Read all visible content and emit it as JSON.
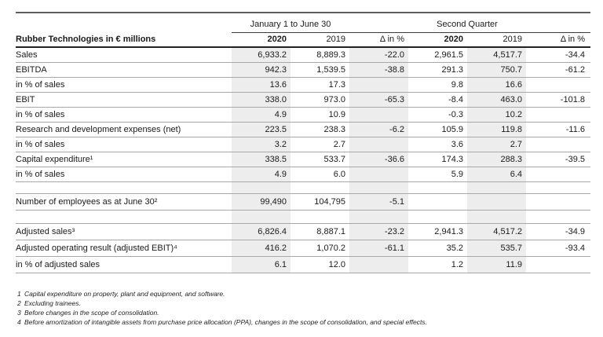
{
  "table": {
    "title": "Rubber Technologies in € millions",
    "group_headers": [
      "January 1 to June 30",
      "Second Quarter"
    ],
    "column_headers": [
      "2020",
      "2019",
      "Δ in %",
      "2020",
      "2019",
      "Δ in %"
    ],
    "rows": [
      {
        "label": "Sales",
        "values": [
          "6,933.2",
          "8,889.3",
          "-22.0",
          "2,961.5",
          "4,517.7",
          "-34.4"
        ]
      },
      {
        "label": "EBITDA",
        "values": [
          "942.3",
          "1,539.5",
          "-38.8",
          "291.3",
          "750.7",
          "-61.2"
        ]
      },
      {
        "label": "in % of sales",
        "values": [
          "13.6",
          "17.3",
          "",
          "9.8",
          "16.6",
          ""
        ]
      },
      {
        "label": "EBIT",
        "values": [
          "338.0",
          "973.0",
          "-65.3",
          "-8.4",
          "463.0",
          "-101.8"
        ]
      },
      {
        "label": "in % of sales",
        "values": [
          "4.9",
          "10.9",
          "",
          "-0.3",
          "10.2",
          ""
        ]
      },
      {
        "label": "Research and development expenses (net)",
        "values": [
          "223.5",
          "238.3",
          "-6.2",
          "105.9",
          "119.8",
          "-11.6"
        ]
      },
      {
        "label": "in % of sales",
        "values": [
          "3.2",
          "2.7",
          "",
          "3.6",
          "2.7",
          ""
        ]
      },
      {
        "label": "Capital expenditure¹",
        "values": [
          "338.5",
          "533.7",
          "-36.6",
          "174.3",
          "288.3",
          "-39.5"
        ]
      },
      {
        "label": "in % of sales",
        "values": [
          "4.9",
          "6.0",
          "",
          "5.9",
          "6.4",
          ""
        ]
      },
      {
        "type": "spacer1"
      },
      {
        "label": "Number of employees as at June 30²",
        "tall": true,
        "values": [
          "99,490",
          "104,795",
          "-5.1",
          "",
          "",
          ""
        ]
      },
      {
        "type": "spacer2"
      },
      {
        "label": "Adjusted sales³",
        "tall": true,
        "values": [
          "6,826.4",
          "8,887.1",
          "-23.2",
          "2,941.3",
          "4,517.2",
          "-34.9"
        ]
      },
      {
        "label": "Adjusted operating result (adjusted EBIT)⁴",
        "tall": true,
        "values": [
          "416.2",
          "1,070.2",
          "-61.1",
          "35.2",
          "535.7",
          "-93.4"
        ]
      },
      {
        "label": "in % of adjusted sales",
        "tall": true,
        "values": [
          "6.1",
          "12.0",
          "",
          "1.2",
          "11.9",
          ""
        ]
      }
    ],
    "footnotes": [
      {
        "num": "1",
        "text": "Capital expenditure on property, plant and equipment, and software."
      },
      {
        "num": "2",
        "text": "Excluding trainees."
      },
      {
        "num": "3",
        "text": "Before changes in the scope of consolidation."
      },
      {
        "num": "4",
        "text": "Before amortization of intangible assets from purchase price allocation (PPA), changes in the scope of consolidation, and special effects."
      }
    ]
  },
  "colors": {
    "stripe": "#ededed",
    "row_line": "#a8a8a8",
    "dark_rule": "#222222",
    "top_rule": "#5f5f5f",
    "group_rule": "#3a3a3a",
    "text": "#1a1a1a"
  }
}
